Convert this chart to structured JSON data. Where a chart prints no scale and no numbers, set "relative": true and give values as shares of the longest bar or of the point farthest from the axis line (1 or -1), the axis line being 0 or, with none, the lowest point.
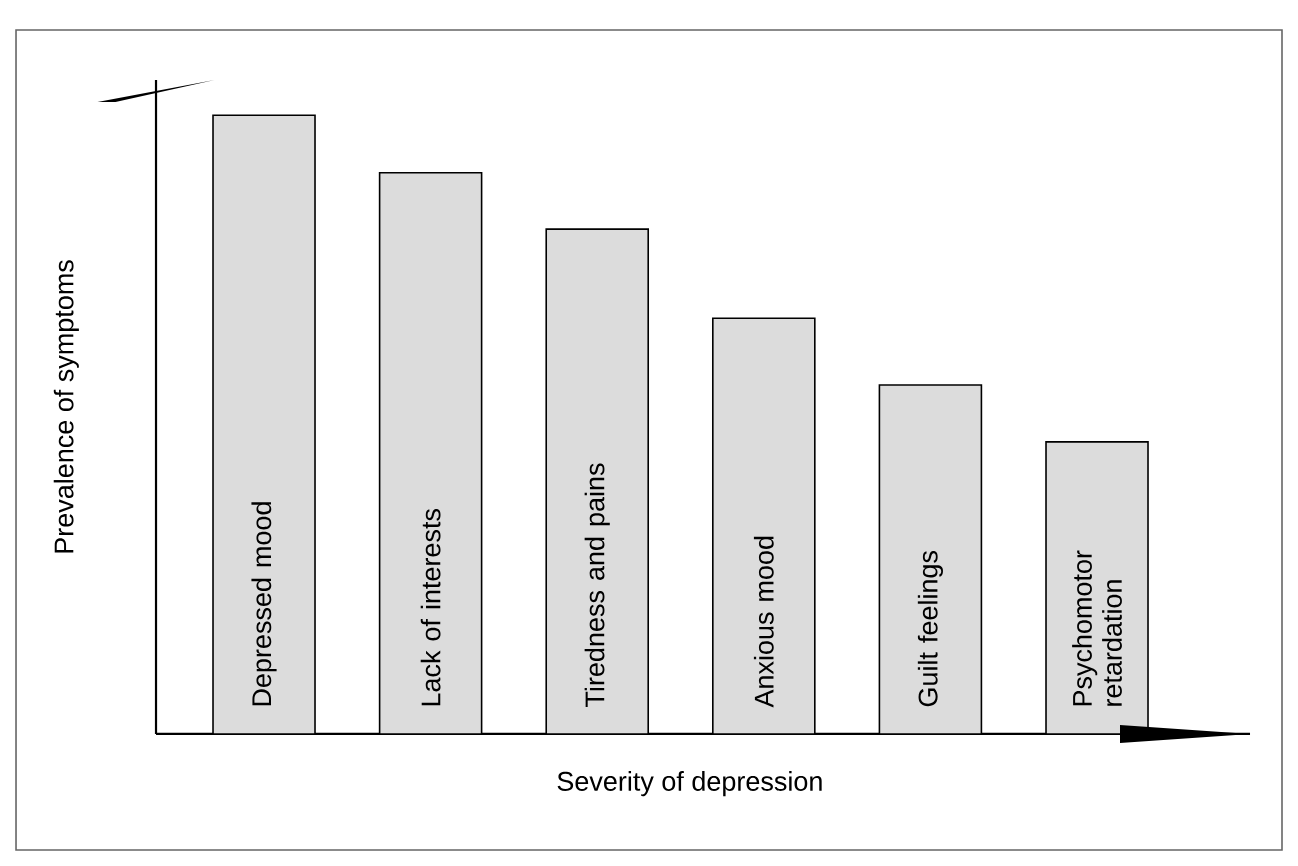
{
  "chart_data": {
    "type": "bar",
    "xlabel": "Severity of depression",
    "ylabel": "Prevalence of symptoms",
    "categories": [
      "Depressed mood",
      "Lack of interests",
      "Tiredness and pains",
      "Anxious mood",
      "Guilt feelings",
      "Psychomotor retardation"
    ],
    "values": [
      1,
      0.907,
      0.816,
      0.672,
      0.564,
      0.472
    ],
    "color": "#dcdcdc",
    "relative": true
  }
}
